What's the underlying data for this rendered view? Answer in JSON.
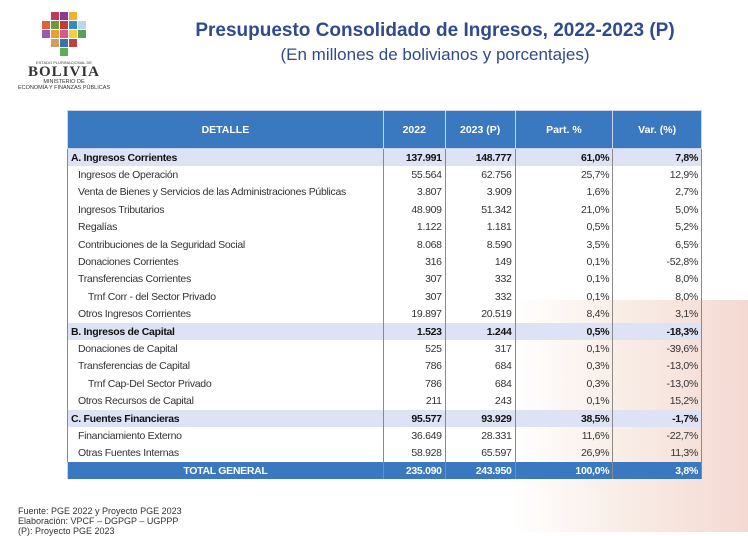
{
  "logo": {
    "small": "ESTADO PLURINACIONAL DE",
    "name": "BOLIVIA",
    "ministry_1": "MINISTERIO DE",
    "ministry_2": "ECONOMÍA Y FINANZAS PÚBLICAS"
  },
  "title": "Presupuesto Consolidado de Ingresos, 2022-2023 (P)",
  "subtitle": "(En millones de bolivianos y porcentajes)",
  "table": {
    "headers": [
      "DETALLE",
      "2022",
      "2023 (P)",
      "Part. %",
      "Var. (%)"
    ],
    "rows": [
      {
        "type": "sec",
        "level": 0,
        "cells": [
          "A. Ingresos Corrientes",
          "137.991",
          "148.777",
          "61,0%",
          "7,8%"
        ]
      },
      {
        "type": "item",
        "level": 1,
        "cells": [
          "Ingresos de Operación",
          "55.564",
          "62.756",
          "25,7%",
          "12,9%"
        ]
      },
      {
        "type": "item",
        "level": 1,
        "cells": [
          "Venta de Bienes y Servicios de las Administraciones Públicas",
          "3.807",
          "3.909",
          "1,6%",
          "2,7%"
        ]
      },
      {
        "type": "item",
        "level": 1,
        "cells": [
          "Ingresos Tributarios",
          "48.909",
          "51.342",
          "21,0%",
          "5,0%"
        ]
      },
      {
        "type": "item",
        "level": 1,
        "cells": [
          "Regalías",
          "1.122",
          "1.181",
          "0,5%",
          "5,2%"
        ]
      },
      {
        "type": "item",
        "level": 1,
        "cells": [
          "Contribuciones de la Seguridad Social",
          "8.068",
          "8.590",
          "3,5%",
          "6,5%"
        ]
      },
      {
        "type": "item",
        "level": 1,
        "cells": [
          "Donaciones Corrientes",
          "316",
          "149",
          "0,1%",
          "-52,8%"
        ]
      },
      {
        "type": "item",
        "level": 1,
        "cells": [
          "Transferencias Corrientes",
          "307",
          "332",
          "0,1%",
          "8,0%"
        ]
      },
      {
        "type": "item",
        "level": 2,
        "cells": [
          "Trnf Corr - del Sector Privado",
          "307",
          "332",
          "0,1%",
          "8,0%"
        ]
      },
      {
        "type": "item",
        "level": 1,
        "cells": [
          "Otros Ingresos Corrientes",
          "19.897",
          "20.519",
          "8,4%",
          "3,1%"
        ]
      },
      {
        "type": "sec",
        "level": 0,
        "cells": [
          "B. Ingresos de Capital",
          "1.523",
          "1.244",
          "0,5%",
          "-18,3%"
        ]
      },
      {
        "type": "item",
        "level": 1,
        "cells": [
          "Donaciones de Capital",
          "525",
          "317",
          "0,1%",
          "-39,6%"
        ]
      },
      {
        "type": "item",
        "level": 1,
        "cells": [
          "Transferencias de Capital",
          "786",
          "684",
          "0,3%",
          "-13,0%"
        ]
      },
      {
        "type": "item",
        "level": 2,
        "cells": [
          "Trnf Cap-Del Sector Privado",
          "786",
          "684",
          "0,3%",
          "-13,0%"
        ]
      },
      {
        "type": "item",
        "level": 1,
        "cells": [
          "Otros Recursos de Capital",
          "211",
          "243",
          "0,1%",
          "15,2%"
        ]
      },
      {
        "type": "sec",
        "level": 0,
        "cells": [
          "C. Fuentes Financieras",
          "95.577",
          "93.929",
          "38,5%",
          "-1,7%"
        ]
      },
      {
        "type": "item",
        "level": 1,
        "cells": [
          "Financiamiento Externo",
          "36.649",
          "28.331",
          "11,6%",
          "-22,7%"
        ]
      },
      {
        "type": "item",
        "level": 1,
        "cells": [
          "Otras Fuentes Internas",
          "58.928",
          "65.597",
          "26,9%",
          "11,3%"
        ]
      },
      {
        "type": "tot",
        "level": 0,
        "cells": [
          "TOTAL GENERAL",
          "235.090",
          "243.950",
          "100,0%",
          "3,8%"
        ]
      }
    ]
  },
  "footer": [
    "Fuente: PGE 2022 y Proyecto PGE 2023",
    "Elaboración: VPCF – DGPGP – UGPPP",
    "(P): Proyecto PGE 2023"
  ],
  "colors": {
    "header": "#3a78c0",
    "section": "#dde3f4",
    "title": "#2f4b8c"
  }
}
